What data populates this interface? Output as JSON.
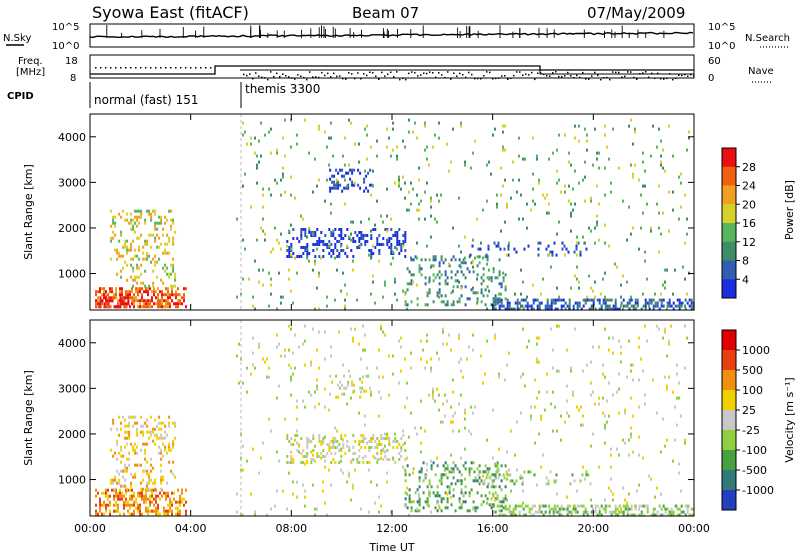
{
  "header": {
    "station": "Syowa East (fitACF)",
    "beam": "Beam 07",
    "date": "07/May/2009"
  },
  "summary_panels": {
    "nsky": {
      "label": "N.Sky",
      "ticks": [
        "10^5",
        "10^0"
      ]
    },
    "nsearch": {
      "label": "N.Search",
      "ticks": [
        "10^5",
        "10^0"
      ]
    },
    "freq": {
      "label_line1": "Freq.",
      "label_line2": "[MHz]",
      "ticks": [
        "18",
        "8"
      ]
    },
    "nave": {
      "label": "Nave",
      "ticks": [
        "60",
        "0"
      ]
    },
    "cpid": {
      "label": "CPID",
      "segments": [
        {
          "name": "normal (fast) 151",
          "start_hour": 0,
          "end_hour": 6
        },
        {
          "name": "themis 3300",
          "start_hour": 6,
          "end_hour": 24
        }
      ]
    }
  },
  "chart_data": [
    {
      "type": "heatmap",
      "title": "",
      "xlabel": "Time UT",
      "ylabel": "Slant Range [km]",
      "x_ticks": [
        "00:00",
        "04:00",
        "08:00",
        "12:00",
        "16:00",
        "20:00",
        "00:00"
      ],
      "xlim_hours": [
        0,
        24
      ],
      "y_ticks": [
        1000,
        2000,
        3000,
        4000
      ],
      "ylim_km": [
        200,
        4500
      ],
      "colorbar": {
        "label": "Power [dB]",
        "ticks": [
          "4",
          "8",
          "12",
          "16",
          "20",
          "24",
          "28"
        ],
        "colors": [
          "#1a2ee0",
          "#2f5fb0",
          "#3f8c6a",
          "#58b65a",
          "#d8d02a",
          "#f0a020",
          "#f06010",
          "#e81010"
        ]
      },
      "scatter_regions": [
        {
          "t": [
            0.2,
            3.8
          ],
          "r": [
            250,
            700
          ],
          "density": 0.55,
          "level": 6
        },
        {
          "t": [
            0.8,
            3.4
          ],
          "r": [
            700,
            2400
          ],
          "density": 0.25,
          "level": 4
        },
        {
          "t": [
            0.3,
            1.5
          ],
          "r": [
            250,
            500
          ],
          "density": 0.6,
          "level": 7
        },
        {
          "t": [
            7.8,
            12.5
          ],
          "r": [
            1400,
            2000
          ],
          "density": 0.3,
          "level": 0
        },
        {
          "t": [
            9.5,
            11.2
          ],
          "r": [
            2800,
            3300
          ],
          "density": 0.25,
          "level": 0
        },
        {
          "t": [
            12.5,
            16.5
          ],
          "r": [
            300,
            1400
          ],
          "density": 0.18,
          "level": 2
        },
        {
          "t": [
            15,
            20
          ],
          "r": [
            1400,
            1700
          ],
          "density": 0.2,
          "level": 0
        },
        {
          "t": [
            5.8,
            23.8
          ],
          "r": [
            200,
            4400
          ],
          "density": 0.035,
          "level": 3
        },
        {
          "t": [
            16,
            24
          ],
          "r": [
            250,
            450
          ],
          "density": 0.55,
          "level": 1
        }
      ]
    },
    {
      "type": "heatmap",
      "title": "",
      "xlabel": "Time UT",
      "ylabel": "Slant Range [km]",
      "x_ticks": [
        "00:00",
        "04:00",
        "08:00",
        "12:00",
        "16:00",
        "20:00",
        "00:00"
      ],
      "xlim_hours": [
        0,
        24
      ],
      "y_ticks": [
        1000,
        2000,
        3000,
        4000
      ],
      "ylim_km": [
        200,
        4500
      ],
      "colorbar": {
        "label": "Velocity [m s⁻¹]",
        "ticks": [
          "1000",
          "500",
          "100",
          "25",
          "-25",
          "-100",
          "-500",
          "-1000"
        ],
        "colors": [
          "#2040c0",
          "#307a78",
          "#48a040",
          "#90d040",
          "#c8c8c8",
          "#f0d000",
          "#f09010",
          "#e84010",
          "#e00000"
        ]
      },
      "scatter_regions": [
        {
          "t": [
            0.2,
            3.8
          ],
          "r": [
            250,
            800
          ],
          "density": 0.5,
          "level": 6
        },
        {
          "t": [
            0.8,
            3.4
          ],
          "r": [
            800,
            2400
          ],
          "density": 0.22,
          "level": 5
        },
        {
          "t": [
            7.8,
            12.5
          ],
          "r": [
            1400,
            2000
          ],
          "density": 0.3,
          "level": 4
        },
        {
          "t": [
            9.5,
            11.2
          ],
          "r": [
            2800,
            3300
          ],
          "density": 0.2,
          "level": 4
        },
        {
          "t": [
            12.5,
            16.5
          ],
          "r": [
            300,
            1400
          ],
          "density": 0.2,
          "level": 2
        },
        {
          "t": [
            15,
            20
          ],
          "r": [
            900,
            1200
          ],
          "density": 0.15,
          "level": 3
        },
        {
          "t": [
            5.8,
            23.8
          ],
          "r": [
            200,
            4400
          ],
          "density": 0.035,
          "level": 4
        },
        {
          "t": [
            16,
            24
          ],
          "r": [
            250,
            450
          ],
          "density": 0.5,
          "level": 3
        }
      ]
    }
  ]
}
